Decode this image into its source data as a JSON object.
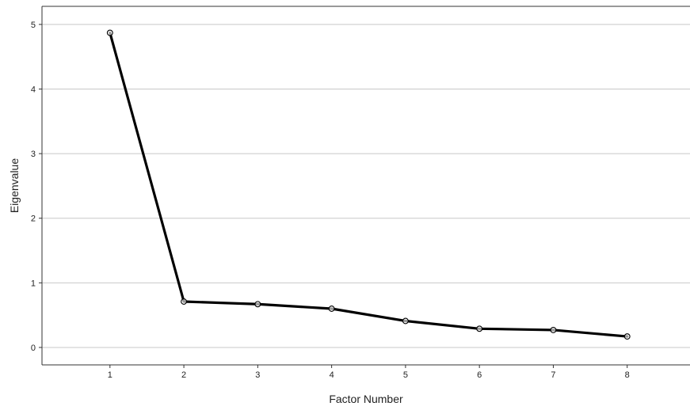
{
  "chart_data": {
    "type": "line",
    "title": "",
    "xlabel": "Factor Number",
    "ylabel": "Eigenvalue",
    "x": [
      1,
      2,
      3,
      4,
      5,
      6,
      7,
      8
    ],
    "x_ticks": [
      "1",
      "2",
      "3",
      "4",
      "5",
      "6",
      "7",
      "8"
    ],
    "y_ticks": [
      "0",
      "1",
      "2",
      "3",
      "4",
      "5"
    ],
    "xlim": [
      0.08,
      8.85
    ],
    "ylim": [
      -0.27,
      5.28
    ],
    "grid": "horizontal",
    "legend": "none",
    "marker": "open-circle",
    "series": [
      {
        "values": [
          4.87,
          0.71,
          0.67,
          0.6,
          0.41,
          0.29,
          0.27,
          0.17
        ]
      }
    ],
    "colors": {
      "line": "#000000",
      "marker": "#000000",
      "grid": "#c8c8c8",
      "frame": "#333333",
      "background": "#ffffff"
    }
  }
}
